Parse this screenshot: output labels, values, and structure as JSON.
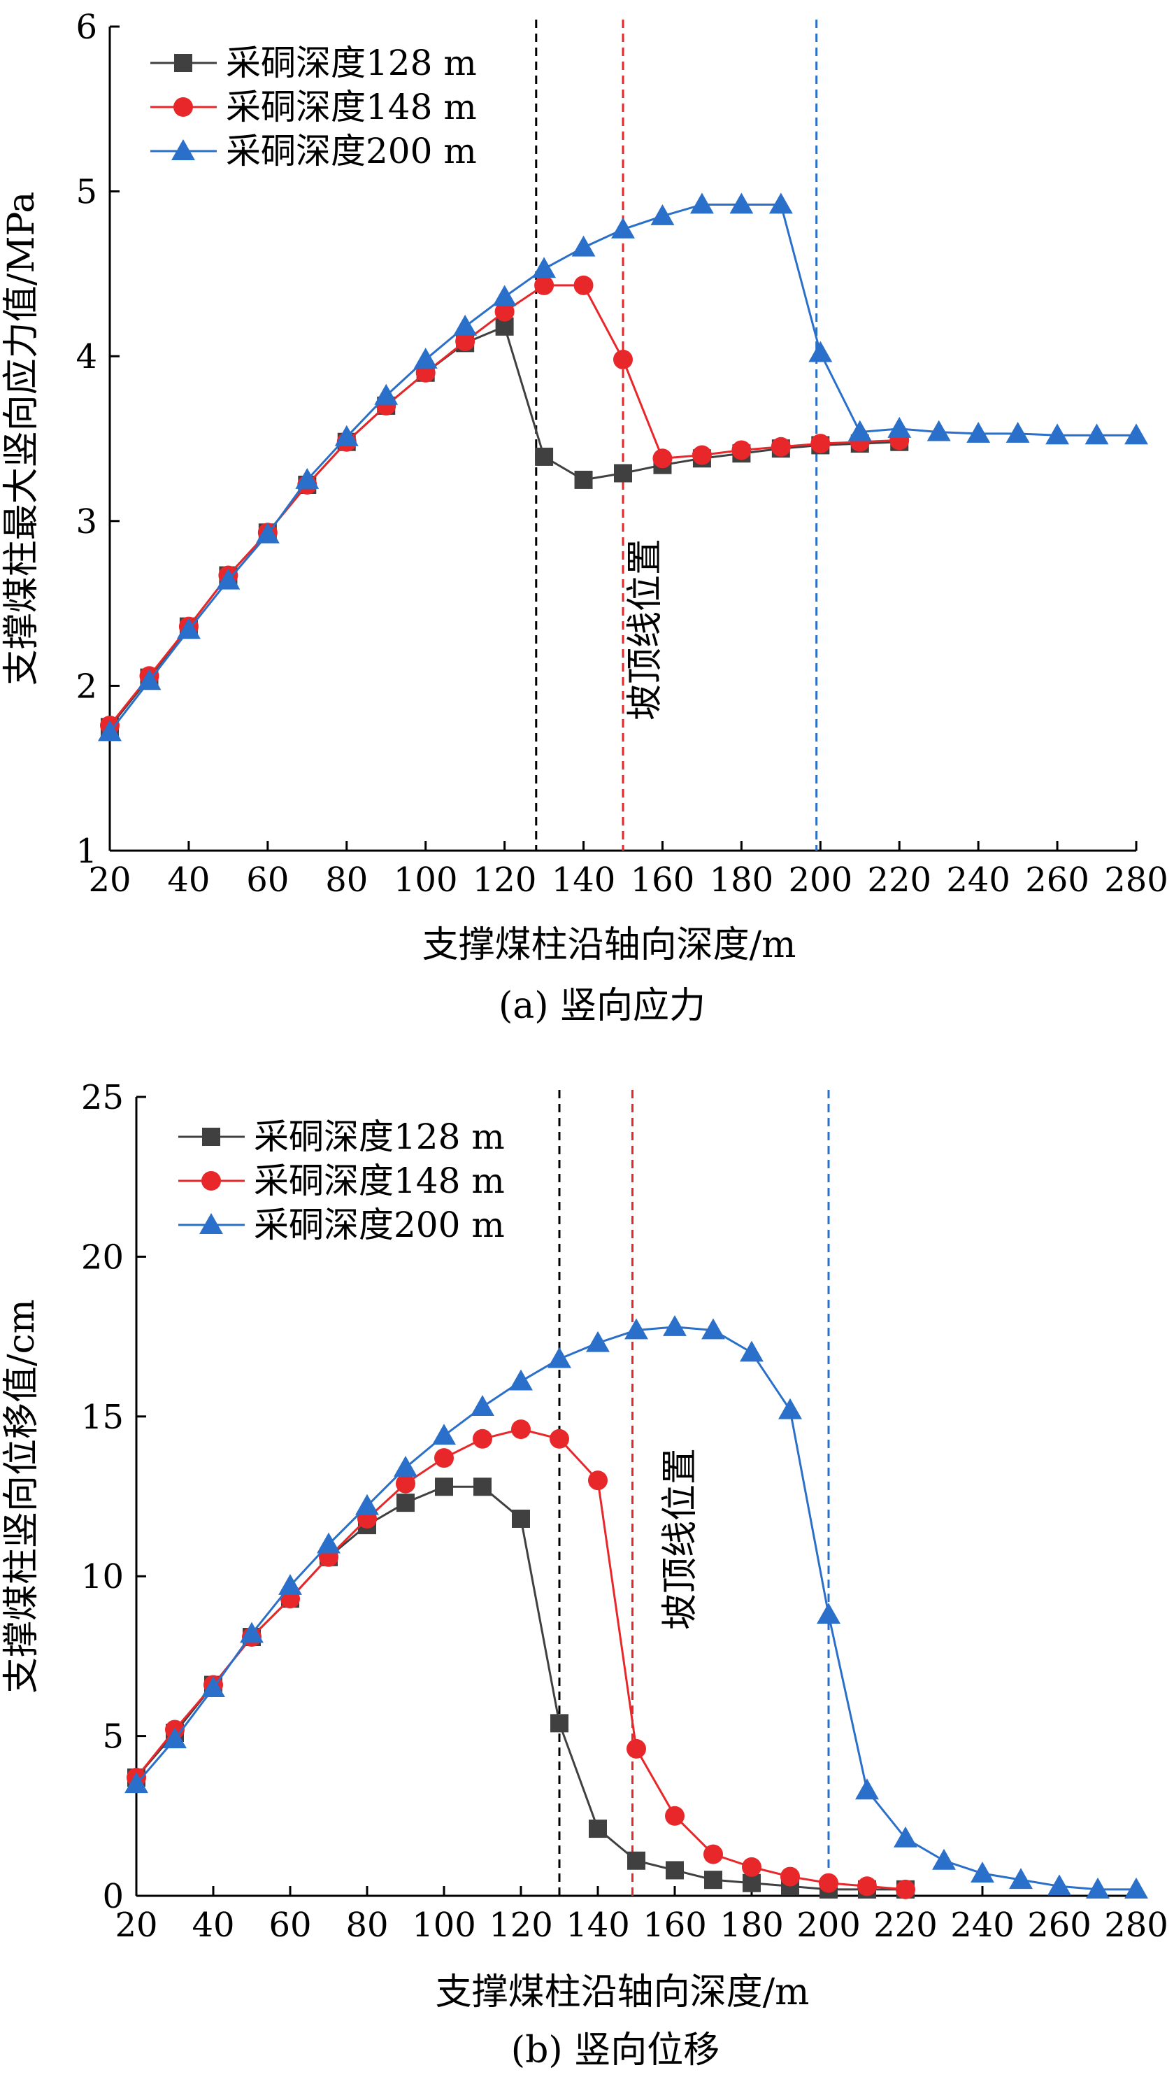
{
  "chart_data": [
    {
      "type": "line",
      "caption": "(a) 竖向应力",
      "xlabel": "支撑煤柱沿轴向深度/m",
      "ylabel": "支撑煤柱最大竖向应力值/MPa",
      "xlim": [
        20,
        280
      ],
      "ylim": [
        1,
        6
      ],
      "xticks": [
        "20",
        "40",
        "60",
        "80",
        "100",
        "120",
        "140",
        "160",
        "180",
        "200",
        "220",
        "240",
        "260",
        "280"
      ],
      "yticks": [
        "1",
        "2",
        "3",
        "4",
        "5",
        "6"
      ],
      "legend_position": "top-left",
      "annotation": "坡顶线位置",
      "vlines": [
        {
          "x": 128,
          "color": "#000000"
        },
        {
          "x": 150,
          "color": "#e8272a"
        },
        {
          "x": 199,
          "color": "#2a6fc9"
        }
      ],
      "series": [
        {
          "name": "采硐深度128 m",
          "color": "#404040",
          "marker": "square",
          "x": [
            20,
            30,
            40,
            50,
            60,
            70,
            80,
            90,
            100,
            110,
            120,
            130,
            140,
            150,
            160,
            170,
            180,
            190,
            200,
            210,
            220
          ],
          "values": [
            1.75,
            2.05,
            2.36,
            2.67,
            2.93,
            3.22,
            3.48,
            3.7,
            3.9,
            4.08,
            4.18,
            3.39,
            3.25,
            3.29,
            3.34,
            3.38,
            3.41,
            3.44,
            3.46,
            3.47,
            3.48
          ]
        },
        {
          "name": "采硐深度148 m",
          "color": "#e8272a",
          "marker": "circle",
          "x": [
            20,
            30,
            40,
            50,
            60,
            70,
            80,
            90,
            100,
            110,
            120,
            130,
            140,
            150,
            160,
            170,
            180,
            190,
            200,
            210,
            220
          ],
          "values": [
            1.76,
            2.06,
            2.36,
            2.67,
            2.93,
            3.22,
            3.48,
            3.7,
            3.9,
            4.09,
            4.27,
            4.43,
            4.43,
            3.98,
            3.38,
            3.4,
            3.43,
            3.45,
            3.47,
            3.48,
            3.49
          ]
        },
        {
          "name": "采硐深度200 m",
          "color": "#2a6fc9",
          "marker": "triangle",
          "x": [
            20,
            30,
            40,
            50,
            60,
            70,
            80,
            90,
            100,
            110,
            120,
            130,
            140,
            150,
            160,
            170,
            180,
            190,
            200,
            210,
            220,
            230,
            240,
            250,
            260,
            270,
            280
          ],
          "values": [
            1.72,
            2.03,
            2.34,
            2.64,
            2.92,
            3.25,
            3.51,
            3.76,
            3.98,
            4.18,
            4.36,
            4.53,
            4.66,
            4.77,
            4.85,
            4.92,
            4.92,
            4.92,
            4.02,
            3.54,
            3.56,
            3.54,
            3.53,
            3.53,
            3.52,
            3.52,
            3.52
          ]
        }
      ]
    },
    {
      "type": "line",
      "caption": "(b) 竖向位移",
      "xlabel": "支撑煤柱沿轴向深度/m",
      "ylabel": "支撑煤柱竖向位移值/cm",
      "xlim": [
        20,
        280
      ],
      "ylim": [
        0,
        25
      ],
      "xticks": [
        "20",
        "40",
        "60",
        "80",
        "100",
        "120",
        "140",
        "160",
        "180",
        "200",
        "220",
        "240",
        "260",
        "280"
      ],
      "yticks": [
        "0",
        "5",
        "10",
        "15",
        "20",
        "25"
      ],
      "legend_position": "top-left",
      "annotation": "坡顶线位置",
      "vlines": [
        {
          "x": 130,
          "color": "#000000"
        },
        {
          "x": 149,
          "color": "#e8272a"
        },
        {
          "x": 200,
          "color": "#2a6fc9"
        }
      ],
      "series": [
        {
          "name": "采硐深度128 m",
          "color": "#404040",
          "marker": "square",
          "x": [
            20,
            30,
            40,
            50,
            60,
            70,
            80,
            90,
            100,
            110,
            120,
            130,
            140,
            150,
            160,
            170,
            180,
            190,
            200,
            210,
            220
          ],
          "values": [
            3.7,
            5.1,
            6.6,
            8.1,
            9.3,
            10.6,
            11.6,
            12.3,
            12.8,
            12.8,
            11.8,
            5.4,
            2.1,
            1.1,
            0.8,
            0.5,
            0.4,
            0.3,
            0.2,
            0.2,
            0.2
          ]
        },
        {
          "name": "采硐深度148 m",
          "color": "#e8272a",
          "marker": "circle",
          "x": [
            20,
            30,
            40,
            50,
            60,
            70,
            80,
            90,
            100,
            110,
            120,
            130,
            140,
            150,
            160,
            170,
            180,
            190,
            200,
            210,
            220
          ],
          "values": [
            3.7,
            5.2,
            6.6,
            8.1,
            9.3,
            10.6,
            11.8,
            12.9,
            13.7,
            14.3,
            14.6,
            14.3,
            13.0,
            4.6,
            2.5,
            1.3,
            0.9,
            0.6,
            0.4,
            0.3,
            0.2
          ]
        },
        {
          "name": "采硐深度200 m",
          "color": "#2a6fc9",
          "marker": "triangle",
          "x": [
            20,
            30,
            40,
            50,
            60,
            70,
            80,
            90,
            100,
            110,
            120,
            130,
            140,
            150,
            160,
            170,
            180,
            190,
            200,
            210,
            220,
            230,
            240,
            250,
            260,
            270,
            280
          ],
          "values": [
            3.5,
            4.9,
            6.5,
            8.2,
            9.7,
            11.0,
            12.2,
            13.4,
            14.4,
            15.3,
            16.1,
            16.8,
            17.3,
            17.7,
            17.8,
            17.7,
            17.0,
            15.2,
            8.8,
            3.3,
            1.8,
            1.1,
            0.7,
            0.5,
            0.3,
            0.2,
            0.2
          ]
        }
      ]
    }
  ]
}
